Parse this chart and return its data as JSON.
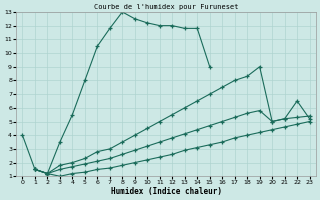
{
  "title": "Courbe de l'humidex pour Furuneset",
  "xlabel": "Humidex (Indice chaleur)",
  "xlim": [
    -0.5,
    23.5
  ],
  "ylim": [
    1,
    13
  ],
  "xticks": [
    0,
    1,
    2,
    3,
    4,
    5,
    6,
    7,
    8,
    9,
    10,
    11,
    12,
    13,
    14,
    15,
    16,
    17,
    18,
    19,
    20,
    21,
    22,
    23
  ],
  "yticks": [
    1,
    2,
    3,
    4,
    5,
    6,
    7,
    8,
    9,
    10,
    11,
    12,
    13
  ],
  "bg_color": "#cde8e5",
  "grid_color": "#afd4d0",
  "line_color": "#1a6b5a",
  "curve1_x": [
    0,
    1,
    2,
    3,
    4,
    5,
    6,
    7,
    8,
    9,
    10,
    11,
    12,
    13,
    14,
    15
  ],
  "curve1_y": [
    4.0,
    1.5,
    1.2,
    3.5,
    5.5,
    8.0,
    10.5,
    11.8,
    13.0,
    12.5,
    12.2,
    12.0,
    12.0,
    11.8,
    11.8,
    9.0
  ],
  "curve2_x": [
    1,
    2,
    3,
    4,
    5,
    6,
    7,
    8,
    9,
    10,
    11,
    12,
    13,
    14,
    15,
    16,
    17,
    18,
    19,
    20,
    21,
    22,
    23
  ],
  "curve2_y": [
    1.5,
    1.2,
    1.8,
    2.0,
    2.3,
    2.8,
    3.0,
    3.5,
    4.0,
    4.5,
    5.0,
    5.5,
    6.0,
    6.5,
    7.0,
    7.5,
    8.0,
    8.3,
    9.0,
    5.0,
    5.2,
    6.5,
    5.2
  ],
  "curve3_x": [
    1,
    2,
    3,
    4,
    5,
    6,
    7,
    8,
    9,
    10,
    11,
    12,
    13,
    14,
    15,
    16,
    17,
    18,
    19,
    20,
    21,
    22,
    23
  ],
  "curve3_y": [
    1.5,
    1.2,
    1.5,
    1.7,
    1.9,
    2.1,
    2.3,
    2.6,
    2.9,
    3.2,
    3.5,
    3.8,
    4.1,
    4.4,
    4.7,
    5.0,
    5.3,
    5.6,
    5.8,
    5.0,
    5.2,
    5.3,
    5.4
  ],
  "curve4_x": [
    1,
    2,
    3,
    4,
    5,
    6,
    7,
    8,
    9,
    10,
    11,
    12,
    13,
    14,
    15,
    16,
    17,
    18,
    19,
    20,
    21,
    22,
    23
  ],
  "curve4_y": [
    1.5,
    1.2,
    1.0,
    1.2,
    1.3,
    1.5,
    1.6,
    1.8,
    2.0,
    2.2,
    2.4,
    2.6,
    2.9,
    3.1,
    3.3,
    3.5,
    3.8,
    4.0,
    4.2,
    4.4,
    4.6,
    4.8,
    5.0
  ]
}
